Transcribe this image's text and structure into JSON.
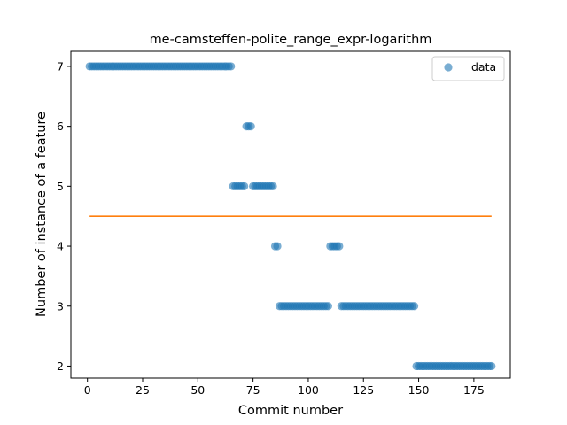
{
  "chart_data": {
    "type": "scatter",
    "title": "me-camsteffen-polite_range_expr-logarithm",
    "xlabel": "Commit number",
    "ylabel": "Number of instance of a feature",
    "xlim": [
      -7.5,
      191.5
    ],
    "ylim": [
      1.8,
      7.25
    ],
    "xticks": [
      0,
      25,
      50,
      75,
      100,
      125,
      150,
      175
    ],
    "yticks": [
      2,
      3,
      4,
      5,
      6,
      7
    ],
    "grid": false,
    "legend": {
      "placement": "top-right",
      "entries": [
        "data"
      ]
    },
    "series": [
      {
        "name": "data",
        "kind": "scatter",
        "color": "#1f77b4",
        "segments": [
          {
            "x_from": 1,
            "x_to": 65,
            "y": 7
          },
          {
            "x_from": 66,
            "x_to": 71,
            "y": 5
          },
          {
            "x_from": 72,
            "x_to": 74,
            "y": 6
          },
          {
            "x_from": 75,
            "x_to": 84,
            "y": 5
          },
          {
            "x_from": 85,
            "x_to": 86,
            "y": 4
          },
          {
            "x_from": 87,
            "x_to": 109,
            "y": 3
          },
          {
            "x_from": 110,
            "x_to": 114,
            "y": 4
          },
          {
            "x_from": 115,
            "x_to": 148,
            "y": 3
          },
          {
            "x_from": 149,
            "x_to": 183,
            "y": 2
          }
        ]
      },
      {
        "name": "",
        "kind": "line",
        "color": "#ff7f0e",
        "x": [
          1,
          183
        ],
        "y": [
          4.5,
          4.5
        ]
      }
    ]
  }
}
